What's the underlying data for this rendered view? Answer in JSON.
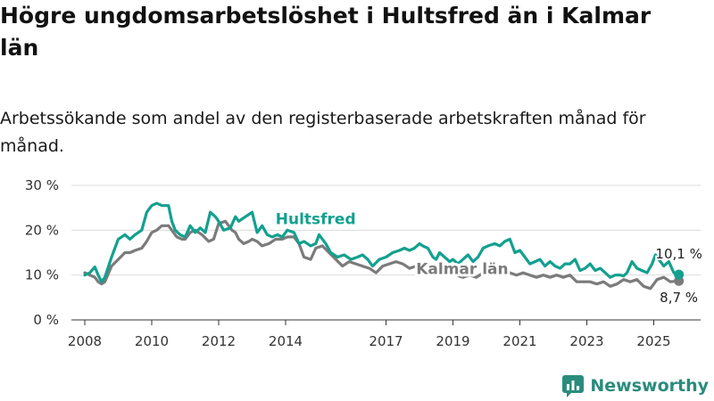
{
  "header": {
    "title": "Högre ungdomsarbetslöshet i Hultsfred än i Kalmar län",
    "subtitle": "Arbetssökande som andel av den registerbaserade arbetskraften månad för månad."
  },
  "brand": {
    "name": "Newsworthy"
  },
  "colors": {
    "hultsfred": "#13a08f",
    "kalmar": "#7b7b7b",
    "grid": "#dcdcdc",
    "logo": "#2a8c7c"
  },
  "chart_data": {
    "type": "line",
    "title": "Högre ungdomsarbetslöshet i Hultsfred än i Kalmar län",
    "subtitle": "Arbetssökande som andel av den registerbaserade arbetskraften månad för månad.",
    "xlabel": "",
    "ylabel": "",
    "xlim": [
      2007.6,
      2026.4
    ],
    "ylim": [
      0,
      30
    ],
    "grid": true,
    "y_ticks": [
      0,
      10,
      20,
      30
    ],
    "y_tick_labels": [
      "0 %",
      "10 %",
      "20 %",
      "30 %"
    ],
    "x_ticks": [
      2008,
      2010,
      2012,
      2014,
      2017,
      2019,
      2021,
      2023,
      2025
    ],
    "x_tick_labels": [
      "2008",
      "2010",
      "2012",
      "2014",
      "2017",
      "2019",
      "2021",
      "2023",
      "2025"
    ],
    "series": [
      {
        "name": "Hultsfred",
        "label": "Hultsfred",
        "x": [
          2008.0,
          2008.15,
          2008.3,
          2008.4,
          2008.5,
          2008.6,
          2008.8,
          2009.0,
          2009.2,
          2009.35,
          2009.5,
          2009.7,
          2009.85,
          2010.0,
          2010.15,
          2010.3,
          2010.5,
          2010.6,
          2010.7,
          2010.85,
          2011.0,
          2011.15,
          2011.3,
          2011.45,
          2011.6,
          2011.75,
          2011.9,
          2012.0,
          2012.15,
          2012.35,
          2012.5,
          2012.6,
          2012.8,
          2013.0,
          2013.15,
          2013.3,
          2013.45,
          2013.6,
          2013.75,
          2013.9,
          2014.05,
          2014.25,
          2014.4,
          2014.55,
          2014.75,
          2014.9,
          2015.0,
          2015.2,
          2015.35,
          2015.55,
          2015.75,
          2015.95,
          2016.15,
          2016.3,
          2016.45,
          2016.6,
          2016.8,
          2017.0,
          2017.2,
          2017.4,
          2017.55,
          2017.7,
          2017.85,
          2018.0,
          2018.1,
          2018.25,
          2018.4,
          2018.5,
          2018.6,
          2018.75,
          2018.9,
          2019.0,
          2019.15,
          2019.3,
          2019.45,
          2019.6,
          2019.75,
          2019.9,
          2020.05,
          2020.25,
          2020.4,
          2020.55,
          2020.7,
          2020.85,
          2021.0,
          2021.15,
          2021.3,
          2021.45,
          2021.6,
          2021.75,
          2021.9,
          2022.05,
          2022.2,
          2022.35,
          2022.5,
          2022.65,
          2022.8,
          2022.95,
          2023.1,
          2023.25,
          2023.4,
          2023.55,
          2023.7,
          2023.85,
          2024.0,
          2024.1,
          2024.2,
          2024.35,
          2024.5,
          2024.65,
          2024.8,
          2024.95,
          2025.05,
          2025.2,
          2025.3,
          2025.45,
          2025.6,
          2025.75
        ],
        "values": [
          10.0,
          10.5,
          11.8,
          10.0,
          8.5,
          9.5,
          14.0,
          18.0,
          19.0,
          18.0,
          19.0,
          20.0,
          24.0,
          25.5,
          26.0,
          25.5,
          25.5,
          22.0,
          20.0,
          19.0,
          18.5,
          21.0,
          19.5,
          20.5,
          19.5,
          24.0,
          23.0,
          22.0,
          20.0,
          20.5,
          23.0,
          22.0,
          23.0,
          24.0,
          19.5,
          21.0,
          19.0,
          18.5,
          19.0,
          18.5,
          20.0,
          19.5,
          17.0,
          17.5,
          16.5,
          17.0,
          19.0,
          17.0,
          15.0,
          14.0,
          14.5,
          13.5,
          14.0,
          14.5,
          13.5,
          12.0,
          13.5,
          14.0,
          15.0,
          15.5,
          16.0,
          15.5,
          16.0,
          17.0,
          16.5,
          16.0,
          14.0,
          13.5,
          15.0,
          14.0,
          13.0,
          13.5,
          12.5,
          13.5,
          14.5,
          13.0,
          14.0,
          16.0,
          16.5,
          17.0,
          16.5,
          17.5,
          18.0,
          15.0,
          15.5,
          14.0,
          12.5,
          13.0,
          13.5,
          12.0,
          13.0,
          12.0,
          11.5,
          12.5,
          12.5,
          13.5,
          11.0,
          11.5,
          12.5,
          11.0,
          11.5,
          10.5,
          9.5,
          10.0,
          10.0,
          9.8,
          10.5,
          13.0,
          11.5,
          11.0,
          10.5,
          12.5,
          14.5,
          13.0,
          12.0,
          13.0,
          10.5,
          10.1
        ]
      },
      {
        "name": "Kalmar län",
        "label": "Kalmar län",
        "x": [
          2008.0,
          2008.15,
          2008.3,
          2008.4,
          2008.5,
          2008.6,
          2008.8,
          2009.0,
          2009.2,
          2009.35,
          2009.5,
          2009.7,
          2009.85,
          2010.0,
          2010.15,
          2010.3,
          2010.5,
          2010.6,
          2010.75,
          2010.9,
          2011.0,
          2011.15,
          2011.3,
          2011.5,
          2011.7,
          2011.85,
          2012.0,
          2012.2,
          2012.4,
          2012.5,
          2012.6,
          2012.75,
          2012.9,
          2013.0,
          2013.15,
          2013.3,
          2013.5,
          2013.7,
          2013.9,
          2014.05,
          2014.25,
          2014.4,
          2014.55,
          2014.75,
          2014.9,
          2015.1,
          2015.3,
          2015.5,
          2015.7,
          2015.9,
          2016.1,
          2016.3,
          2016.5,
          2016.7,
          2016.9,
          2017.1,
          2017.3,
          2017.5,
          2017.7,
          2017.9,
          2018.1,
          2018.3,
          2018.5,
          2018.7,
          2018.9,
          2019.1,
          2019.3,
          2019.5,
          2019.7,
          2019.9,
          2020.1,
          2020.3,
          2020.5,
          2020.7,
          2020.9,
          2021.1,
          2021.3,
          2021.5,
          2021.7,
          2021.9,
          2022.1,
          2022.3,
          2022.5,
          2022.7,
          2022.9,
          2023.1,
          2023.3,
          2023.5,
          2023.7,
          2023.9,
          2024.1,
          2024.3,
          2024.5,
          2024.7,
          2024.9,
          2025.1,
          2025.3,
          2025.5,
          2025.75
        ],
        "values": [
          10.5,
          10.0,
          9.5,
          8.5,
          8.0,
          8.5,
          12.0,
          13.5,
          15.0,
          15.0,
          15.5,
          16.0,
          17.5,
          19.5,
          20.0,
          21.0,
          21.0,
          20.0,
          18.5,
          18.0,
          18.0,
          19.5,
          20.0,
          19.0,
          17.5,
          18.0,
          21.5,
          22.0,
          20.0,
          19.5,
          18.0,
          17.0,
          17.5,
          18.0,
          17.5,
          16.5,
          17.0,
          18.0,
          18.0,
          18.5,
          18.5,
          17.0,
          14.0,
          13.5,
          16.0,
          16.5,
          15.0,
          13.5,
          12.0,
          13.0,
          12.5,
          12.0,
          11.5,
          10.5,
          12.0,
          12.5,
          13.0,
          12.5,
          11.5,
          12.0,
          12.5,
          11.0,
          11.0,
          11.5,
          10.5,
          10.0,
          9.5,
          10.0,
          9.5,
          10.5,
          11.0,
          10.5,
          11.0,
          10.5,
          10.0,
          10.5,
          10.0,
          9.5,
          10.0,
          9.5,
          10.0,
          9.5,
          10.0,
          8.5,
          8.5,
          8.5,
          8.0,
          8.5,
          7.5,
          8.0,
          9.0,
          8.5,
          9.0,
          7.5,
          7.0,
          9.0,
          9.5,
          8.5,
          8.7
        ]
      }
    ],
    "end_labels": [
      "10,1 %",
      "8,7 %"
    ]
  }
}
